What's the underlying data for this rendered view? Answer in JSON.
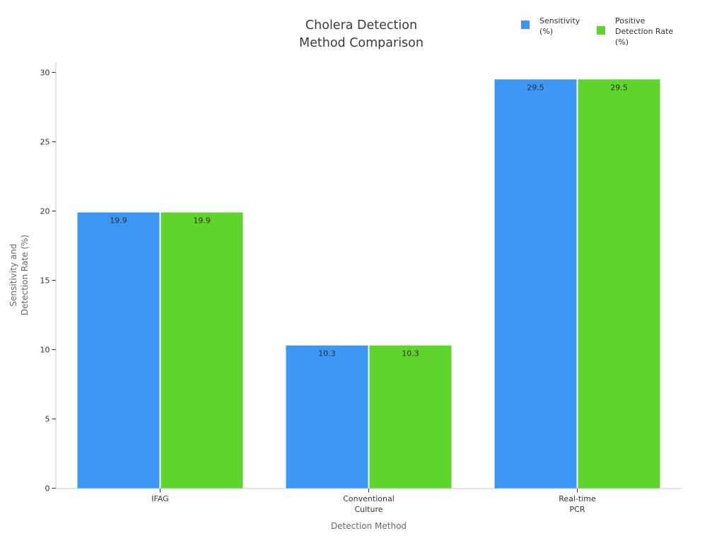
{
  "title": {
    "line1": "Cholera Detection",
    "line2": "Method Comparison"
  },
  "chart_data": {
    "type": "bar",
    "title": "Cholera Detection Method Comparison",
    "categories": [
      "IFAG",
      "Conventional Culture",
      "Real-time PCR"
    ],
    "category_label_lines": [
      [
        "IFAG"
      ],
      [
        "Conventional",
        "Culture"
      ],
      [
        "Real-time",
        "PCR"
      ]
    ],
    "series": [
      {
        "name": "Sensitivity (%)",
        "legend_lines": [
          "Sensitivity",
          "(%)"
        ],
        "color": "#3b96f4",
        "values": [
          19.9,
          10.3,
          29.5
        ],
        "value_labels": [
          "19.9",
          "10.3",
          "29.5"
        ]
      },
      {
        "name": "Positive Detection Rate (%)",
        "legend_lines": [
          "Positive",
          "Detection Rate",
          "(%)"
        ],
        "color": "#5ed42c",
        "values": [
          19.9,
          10.3,
          29.5
        ],
        "value_labels": [
          "19.9",
          "10.3",
          "29.5"
        ]
      }
    ],
    "xlabel": "Detection Method",
    "ylabel": "Sensitivity and Detection Rate (%)",
    "ylabel_lines": [
      "Sensitivity and",
      "Detection Rate (%)"
    ],
    "yticks": [
      0,
      5,
      10,
      15,
      20,
      25,
      30
    ],
    "ylim": [
      0,
      30.8
    ],
    "grid": false,
    "legend_position": "top-right",
    "bar_labels_inside_top": true
  }
}
